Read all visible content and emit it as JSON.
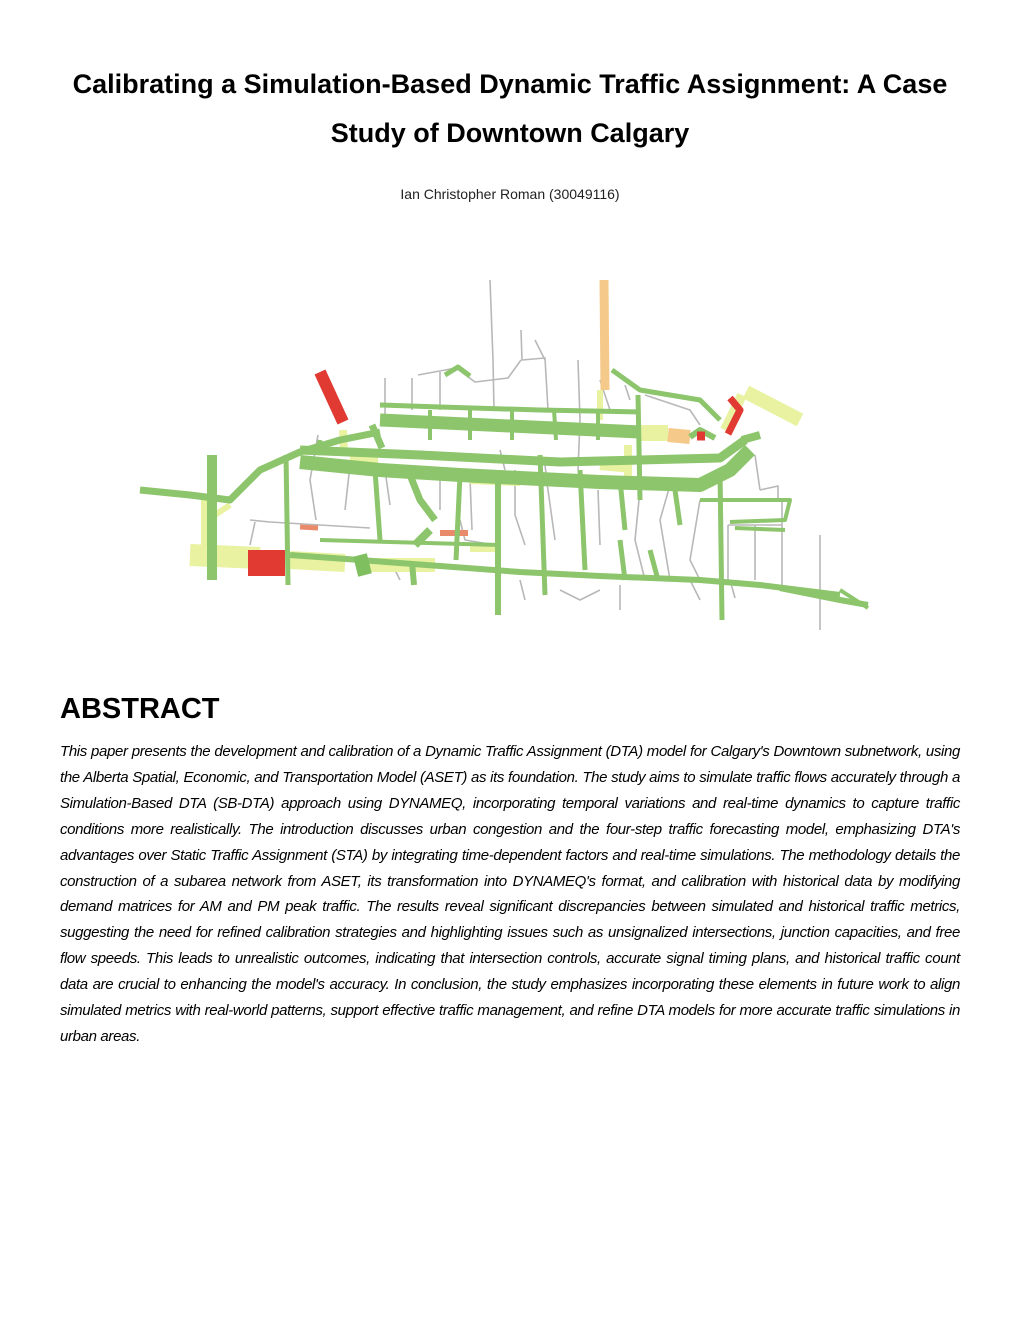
{
  "document": {
    "title": "Calibrating a Simulation-Based Dynamic Traffic Assignment: A Case Study of Downtown Calgary",
    "author": "Ian Christopher Roman (30049116)"
  },
  "figure": {
    "legend_colors": {
      "low_flow": "#7fbf5f",
      "light_flow": "#e8f2a0",
      "moderate_flow": "#f5c98a",
      "high_flow": "#e03a33",
      "local_road": "#b8b8b8"
    }
  },
  "abstract": {
    "heading": "ABSTRACT",
    "body": "This paper presents the development and calibration of a Dynamic Traffic Assignment (DTA) model for Calgary's Downtown subnetwork, using the Alberta Spatial, Economic, and Transportation Model (ASET) as its foundation. The study aims to simulate traffic flows accurately through a Simulation-Based DTA (SB-DTA) approach using DYNAMEQ, incorporating temporal variations and real-time dynamics to capture traffic conditions more realistically. The introduction discusses urban congestion and the four-step traffic forecasting model, emphasizing DTA's advantages over Static Traffic Assignment (STA) by integrating time-dependent factors and real-time simulations. The methodology details the construction of a subarea network from ASET, its transformation into DYNAMEQ's format, and calibration with historical data by modifying demand matrices for AM and PM peak traffic. The results reveal significant discrepancies between simulated and historical traffic metrics, suggesting the need for refined calibration strategies and highlighting issues such as unsignalized intersections, junction capacities, and free flow speeds. This leads to unrealistic outcomes, indicating that intersection controls, accurate signal timing plans, and historical traffic count data are crucial to enhancing the model's accuracy. In conclusion, the study emphasizes incorporating these elements in future work to align simulated metrics with real-world patterns, support effective traffic management, and refine DTA models for more accurate traffic simulations in urban areas."
  }
}
